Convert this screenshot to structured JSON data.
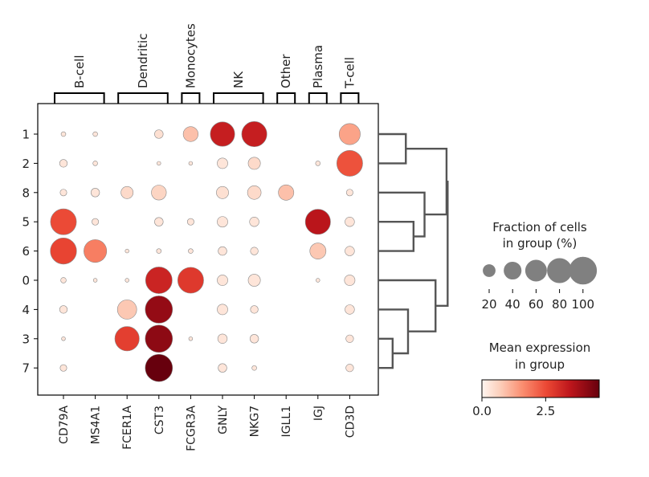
{
  "chart_data": {
    "type": "dotplot",
    "genes": [
      "CD79A",
      "MS4A1",
      "FCER1A",
      "CST3",
      "FCGR3A",
      "GNLY",
      "NKG7",
      "IGLL1",
      "IGJ",
      "CD3D"
    ],
    "groups": [
      "1",
      "2",
      "8",
      "5",
      "6",
      "0",
      "4",
      "3",
      "7"
    ],
    "gene_groups": [
      {
        "label": "B-cell",
        "start": 0,
        "end": 1
      },
      {
        "label": "Dendritic",
        "start": 2,
        "end": 3
      },
      {
        "label": "Monocytes",
        "start": 4,
        "end": 4
      },
      {
        "label": "NK",
        "start": 5,
        "end": 6
      },
      {
        "label": "Other",
        "start": 7,
        "end": 7
      },
      {
        "label": "Plasma",
        "start": 8,
        "end": 8
      },
      {
        "label": "T-cell",
        "start": 9,
        "end": 9
      }
    ],
    "fraction_pct": [
      [
        3,
        3,
        0,
        10,
        30,
        80,
        85,
        0,
        0,
        60
      ],
      [
        8,
        3,
        0,
        2,
        2,
        15,
        20,
        0,
        3,
        90
      ],
      [
        6,
        10,
        20,
        30,
        0,
        20,
        25,
        32,
        0,
        6
      ],
      [
        90,
        6,
        0,
        10,
        6,
        15,
        12,
        0,
        85,
        12
      ],
      [
        92,
        70,
        2,
        3,
        3,
        10,
        8,
        0,
        35,
        12
      ],
      [
        4,
        2,
        2,
        95,
        90,
        15,
        20,
        0,
        2,
        15
      ],
      [
        8,
        0,
        50,
        100,
        0,
        15,
        8,
        0,
        0,
        12
      ],
      [
        2,
        0,
        80,
        100,
        2,
        12,
        10,
        0,
        0,
        8
      ],
      [
        6,
        0,
        0,
        100,
        0,
        10,
        3,
        0,
        0,
        8
      ]
    ],
    "mean_expr": [
      [
        0.3,
        0.3,
        0,
        0.4,
        0.9,
        3.3,
        3.3,
        0,
        0,
        1.3
      ],
      [
        0.3,
        0.3,
        0,
        0.3,
        0.3,
        0.3,
        0.5,
        0,
        0.3,
        2.4
      ],
      [
        0.3,
        0.3,
        0.5,
        0.6,
        0,
        0.4,
        0.5,
        0.9,
        0,
        0.3
      ],
      [
        2.5,
        0.3,
        0,
        0.3,
        0.3,
        0.3,
        0.3,
        0,
        3.5,
        0.3
      ],
      [
        2.6,
        1.8,
        0.3,
        0.3,
        0.3,
        0.3,
        0.3,
        0,
        0.8,
        0.3
      ],
      [
        0.3,
        0.3,
        0.3,
        3.2,
        2.8,
        0.3,
        0.3,
        0,
        0.3,
        0.3
      ],
      [
        0.3,
        0,
        0.8,
        4.0,
        0,
        0.3,
        0.3,
        0,
        0,
        0.3
      ],
      [
        0.3,
        0,
        2.7,
        4.1,
        0.3,
        0.3,
        0.3,
        0,
        0,
        0.3
      ],
      [
        0.3,
        0,
        0,
        4.6,
        0,
        0.3,
        0.3,
        0,
        0,
        0.3
      ]
    ],
    "dendrogram": {
      "merges": [
        {
          "a": "1",
          "b": "2",
          "height": 0.25
        },
        {
          "a": "5",
          "b": "6",
          "height": 0.32
        },
        {
          "a": "8",
          "b": "5|6",
          "height": 0.42
        },
        {
          "a": "1|2",
          "b": "8|5|6",
          "height": 0.62
        },
        {
          "a": "3",
          "b": "7",
          "height": 0.13
        },
        {
          "a": "4",
          "b": "3|7",
          "height": 0.27
        },
        {
          "a": "0",
          "b": "4|3|7",
          "height": 0.52
        },
        {
          "a": "1|2|8|5|6",
          "b": "0|4|3|7",
          "height": 0.63
        }
      ]
    },
    "size_legend": {
      "title_line1": "Fraction of cells",
      "title_line2": "in group (%)",
      "ticks": [
        20,
        40,
        60,
        80,
        100
      ]
    },
    "color_legend": {
      "title_line1": "Mean expression",
      "title_line2": "in group",
      "min": 0,
      "max": 4.6,
      "ticks": [
        "0.0",
        "2.5"
      ],
      "tick_values": [
        0,
        2.5
      ],
      "colormap": "Reds"
    }
  }
}
